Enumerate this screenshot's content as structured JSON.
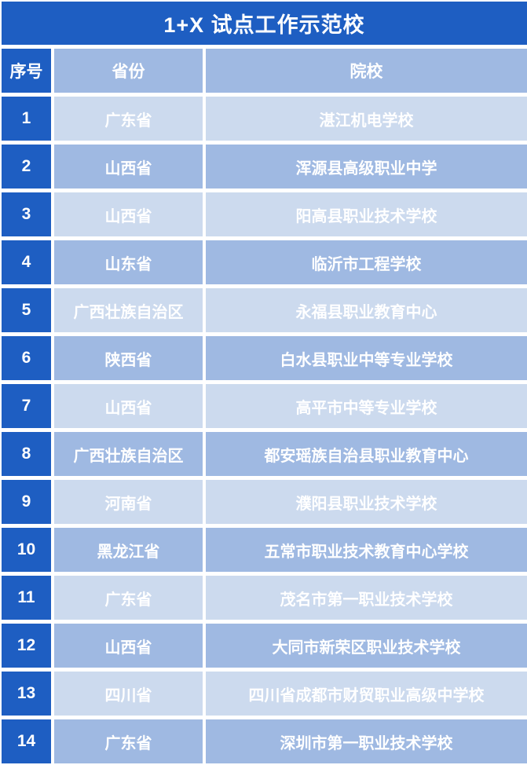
{
  "title": "1+X 试点工作示范校",
  "colors": {
    "primary_blue": "#1E5EC2",
    "row_medium": "#9FB9E2",
    "row_light": "#CCDAEE",
    "text": "#FFFFFF"
  },
  "chart_data": {
    "type": "table",
    "title": "1+X 试点工作示范校",
    "columns": [
      "序号",
      "省份",
      "院校"
    ],
    "rows": [
      {
        "no": "1",
        "province": "广东省",
        "school": "湛江机电学校"
      },
      {
        "no": "2",
        "province": "山西省",
        "school": "浑源县高级职业中学"
      },
      {
        "no": "3",
        "province": "山西省",
        "school": "阳高县职业技术学校"
      },
      {
        "no": "4",
        "province": "山东省",
        "school": "临沂市工程学校"
      },
      {
        "no": "5",
        "province": "广西壮族自治区",
        "school": "永福县职业教育中心"
      },
      {
        "no": "6",
        "province": "陕西省",
        "school": "白水县职业中等专业学校"
      },
      {
        "no": "7",
        "province": "山西省",
        "school": "高平市中等专业学校"
      },
      {
        "no": "8",
        "province": "广西壮族自治区",
        "school": "都安瑶族自治县职业教育中心"
      },
      {
        "no": "9",
        "province": "河南省",
        "school": "濮阳县职业技术学校"
      },
      {
        "no": "10",
        "province": "黑龙江省",
        "school": "五常市职业技术教育中心学校"
      },
      {
        "no": "11",
        "province": "广东省",
        "school": "茂名市第一职业技术学校"
      },
      {
        "no": "12",
        "province": "山西省",
        "school": "大同市新荣区职业技术学校"
      },
      {
        "no": "13",
        "province": "四川省",
        "school": "四川省成都市财贸职业高级中学校"
      },
      {
        "no": "14",
        "province": "广东省",
        "school": "深圳市第一职业技术学校"
      }
    ]
  }
}
